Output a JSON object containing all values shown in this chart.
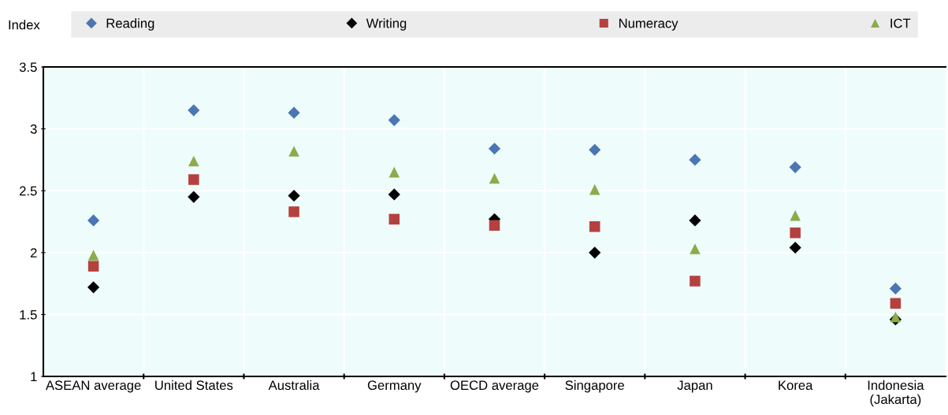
{
  "chart_data": {
    "type": "scatter",
    "ylabel": "Index",
    "categories": [
      "ASEAN average",
      "United States",
      "Australia",
      "Germany",
      "OECD average",
      "Singapore",
      "Japan",
      "Korea",
      "Indonesia\n(Jakarta)"
    ],
    "series": [
      {
        "name": "Reading",
        "color": "#4a76b4",
        "marker": "diamond",
        "values": [
          2.26,
          3.15,
          3.13,
          3.07,
          2.84,
          2.83,
          2.75,
          2.69,
          1.71
        ]
      },
      {
        "name": "Writing",
        "color": "#000000",
        "marker": "diamond",
        "values": [
          1.72,
          2.45,
          2.46,
          2.47,
          2.27,
          2.0,
          2.26,
          2.04,
          1.46
        ]
      },
      {
        "name": "Numeracy",
        "color": "#b5413f",
        "marker": "square",
        "values": [
          1.89,
          2.59,
          2.33,
          2.27,
          2.22,
          2.21,
          1.77,
          2.16,
          1.59
        ]
      },
      {
        "name": "ICT",
        "color": "#8cab4a",
        "marker": "triangle",
        "values": [
          1.98,
          2.74,
          2.82,
          2.65,
          2.6,
          2.51,
          2.03,
          2.3,
          1.48
        ]
      }
    ],
    "ylim": [
      1,
      3.5
    ],
    "yticks": [
      1,
      1.5,
      2,
      2.5,
      3,
      3.5
    ],
    "grid": true,
    "legend": "top"
  }
}
